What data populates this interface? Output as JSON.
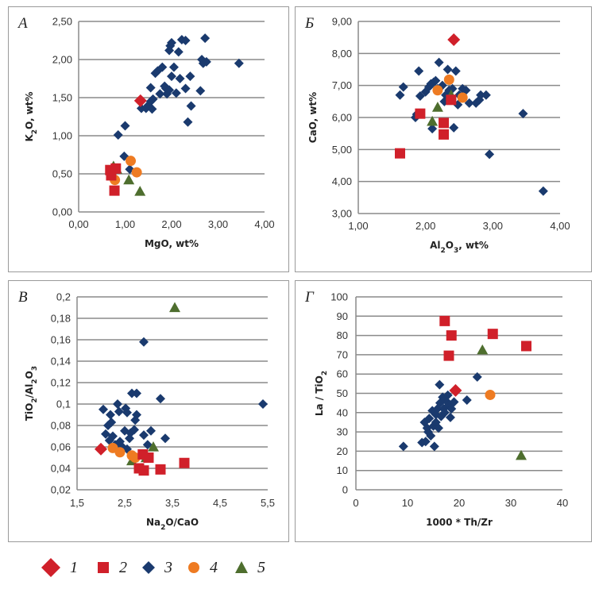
{
  "legend": [
    {
      "id": "1",
      "label": "1",
      "shape": "diamond-large",
      "color": "#d0202a"
    },
    {
      "id": "2",
      "label": "2",
      "shape": "square",
      "color": "#d0202a"
    },
    {
      "id": "3",
      "label": "3",
      "shape": "diamond",
      "color": "#1a3a6e"
    },
    {
      "id": "4",
      "label": "4",
      "shape": "circle",
      "color": "#ee7b22"
    },
    {
      "id": "5",
      "label": "5",
      "shape": "triangle",
      "color": "#4e6e2e"
    }
  ],
  "chart_data": [
    {
      "type": "scatter",
      "panel": "A",
      "panel_letter": "А",
      "xlabel": "MgO, wt%",
      "ylabel_main": "K",
      "ylabel_sub": "2",
      "ylabel_rest": "O, wt%",
      "xlim": [
        0,
        4
      ],
      "ylim": [
        0,
        2.5
      ],
      "xticks": [
        0,
        1,
        2,
        3,
        4
      ],
      "xtick_labels": [
        "0,00",
        "1,00",
        "2,00",
        "3,00",
        "4,00"
      ],
      "yticks": [
        0,
        0.5,
        1,
        1.5,
        2,
        2.5
      ],
      "ytick_labels": [
        "0,00",
        "0,50",
        "1,00",
        "1,50",
        "2,00",
        "2,50"
      ],
      "grid": true,
      "series": [
        {
          "name": "1",
          "points": [
            [
              1.33,
              1.46
            ]
          ]
        },
        {
          "name": "2",
          "points": [
            [
              0.68,
              0.55
            ],
            [
              0.7,
              0.48
            ],
            [
              0.8,
              0.57
            ],
            [
              0.77,
              0.28
            ]
          ]
        },
        {
          "name": "3",
          "points": [
            [
              0.85,
              1.01
            ],
            [
              1.0,
              1.13
            ],
            [
              0.98,
              0.73
            ],
            [
              1.1,
              0.56
            ],
            [
              1.35,
              1.36
            ],
            [
              1.45,
              1.36
            ],
            [
              1.5,
              1.4
            ],
            [
              1.55,
              1.45
            ],
            [
              1.58,
              1.35
            ],
            [
              1.55,
              1.63
            ],
            [
              1.6,
              1.48
            ],
            [
              1.65,
              1.82
            ],
            [
              1.7,
              1.85
            ],
            [
              1.75,
              1.55
            ],
            [
              1.8,
              1.9
            ],
            [
              1.85,
              1.65
            ],
            [
              1.88,
              1.62
            ],
            [
              1.9,
              1.55
            ],
            [
              1.95,
              1.6
            ],
            [
              1.95,
              2.12
            ],
            [
              1.97,
              2.18
            ],
            [
              2.0,
              2.22
            ],
            [
              2.0,
              1.78
            ],
            [
              2.05,
              1.9
            ],
            [
              2.1,
              1.56
            ],
            [
              2.15,
              2.1
            ],
            [
              2.18,
              1.75
            ],
            [
              2.22,
              2.26
            ],
            [
              2.3,
              2.25
            ],
            [
              2.3,
              1.62
            ],
            [
              2.35,
              1.18
            ],
            [
              2.4,
              1.78
            ],
            [
              2.42,
              1.39
            ],
            [
              2.62,
              1.59
            ],
            [
              2.65,
              2.0
            ],
            [
              2.68,
              1.95
            ],
            [
              2.72,
              2.28
            ],
            [
              2.75,
              1.97
            ],
            [
              3.45,
              1.95
            ]
          ]
        },
        {
          "name": "4",
          "points": [
            [
              0.78,
              0.42
            ],
            [
              1.12,
              0.67
            ],
            [
              1.25,
              0.52
            ]
          ]
        },
        {
          "name": "5",
          "points": [
            [
              0.75,
              0.6
            ],
            [
              0.82,
              0.56
            ],
            [
              1.08,
              0.42
            ],
            [
              1.32,
              0.27
            ]
          ]
        }
      ]
    },
    {
      "type": "scatter",
      "panel": "B",
      "panel_letter": "Б",
      "xlabel_main": "Al",
      "xlabel_sub1": "2",
      "xlabel_mid": "O",
      "xlabel_sub2": "3",
      "xlabel_rest": ", wt%",
      "ylabel": "CaO, wt%",
      "xlim": [
        1,
        4
      ],
      "ylim": [
        3,
        9
      ],
      "xticks": [
        1,
        2,
        3,
        4
      ],
      "xtick_labels": [
        "1,00",
        "2,00",
        "3,00",
        "4,00"
      ],
      "yticks": [
        3,
        4,
        5,
        6,
        7,
        8,
        9
      ],
      "ytick_labels": [
        "3,00",
        "4,00",
        "5,00",
        "6,00",
        "7,00",
        "8,00",
        "9,00"
      ],
      "grid": true,
      "series": [
        {
          "name": "1",
          "points": [
            [
              2.42,
              8.43
            ]
          ]
        },
        {
          "name": "2",
          "points": [
            [
              1.62,
              4.88
            ],
            [
              1.92,
              6.12
            ],
            [
              2.27,
              5.83
            ],
            [
              2.27,
              5.47
            ],
            [
              2.38,
              6.55
            ]
          ]
        },
        {
          "name": "3",
          "points": [
            [
              1.62,
              6.7
            ],
            [
              1.67,
              6.95
            ],
            [
              1.85,
              6.0
            ],
            [
              1.87,
              6.1
            ],
            [
              1.9,
              7.45
            ],
            [
              1.92,
              6.67
            ],
            [
              2.0,
              6.8
            ],
            [
              2.05,
              6.95
            ],
            [
              2.08,
              7.05
            ],
            [
              2.1,
              5.65
            ],
            [
              2.12,
              7.1
            ],
            [
              2.15,
              7.15
            ],
            [
              2.18,
              6.9
            ],
            [
              2.2,
              7.72
            ],
            [
              2.25,
              7.0
            ],
            [
              2.28,
              6.5
            ],
            [
              2.3,
              6.7
            ],
            [
              2.33,
              7.5
            ],
            [
              2.35,
              6.85
            ],
            [
              2.4,
              6.9
            ],
            [
              2.42,
              5.68
            ],
            [
              2.45,
              7.45
            ],
            [
              2.48,
              6.4
            ],
            [
              2.5,
              6.7
            ],
            [
              2.55,
              6.9
            ],
            [
              2.6,
              6.85
            ],
            [
              2.65,
              6.45
            ],
            [
              2.75,
              6.45
            ],
            [
              2.8,
              6.55
            ],
            [
              2.82,
              6.7
            ],
            [
              2.9,
              6.7
            ],
            [
              2.95,
              4.85
            ],
            [
              3.45,
              6.12
            ],
            [
              3.75,
              3.7
            ]
          ]
        },
        {
          "name": "4",
          "points": [
            [
              2.18,
              6.85
            ],
            [
              2.35,
              7.18
            ],
            [
              2.55,
              6.62
            ]
          ]
        },
        {
          "name": "5",
          "points": [
            [
              2.1,
              5.88
            ],
            [
              2.18,
              6.32
            ],
            [
              2.38,
              6.7
            ]
          ]
        }
      ]
    },
    {
      "type": "scatter",
      "panel": "C",
      "panel_letter": "В",
      "xlabel_main": "Na",
      "xlabel_sub": "2",
      "xlabel_rest": "O/CaO",
      "ylabel_main": "TiO",
      "ylabel_sub1": "2",
      "ylabel_mid": "/Al",
      "ylabel_sub2": "2",
      "ylabel_mid2": "O",
      "ylabel_sub3": "3",
      "xlim": [
        1.5,
        5.5
      ],
      "ylim": [
        0.02,
        0.2
      ],
      "xticks": [
        1.5,
        2.5,
        3.5,
        4.5,
        5.5
      ],
      "xtick_labels": [
        "1,5",
        "2,5",
        "3,5",
        "4,5",
        "5,5"
      ],
      "yticks": [
        0.02,
        0.04,
        0.06,
        0.08,
        0.1,
        0.12,
        0.14,
        0.16,
        0.18,
        0.2
      ],
      "ytick_labels": [
        "0,02",
        "0,04",
        "0,06",
        "0,08",
        "0,1",
        "0,12",
        "0,14",
        "0,16",
        "0,18",
        "0,2"
      ],
      "grid": true,
      "series": [
        {
          "name": "1",
          "points": [
            [
              2.0,
              0.058
            ]
          ]
        },
        {
          "name": "2",
          "points": [
            [
              2.8,
              0.04
            ],
            [
              2.88,
              0.053
            ],
            [
              2.9,
              0.038
            ],
            [
              3.0,
              0.05
            ],
            [
              3.25,
              0.039
            ],
            [
              3.75,
              0.045
            ]
          ]
        },
        {
          "name": "3",
          "points": [
            [
              2.05,
              0.095
            ],
            [
              2.1,
              0.072
            ],
            [
              2.15,
              0.08
            ],
            [
              2.18,
              0.066
            ],
            [
              2.2,
              0.09
            ],
            [
              2.22,
              0.083
            ],
            [
              2.25,
              0.07
            ],
            [
              2.3,
              0.062
            ],
            [
              2.35,
              0.1
            ],
            [
              2.38,
              0.093
            ],
            [
              2.4,
              0.065
            ],
            [
              2.45,
              0.06
            ],
            [
              2.5,
              0.075
            ],
            [
              2.52,
              0.096
            ],
            [
              2.55,
              0.092
            ],
            [
              2.55,
              0.058
            ],
            [
              2.6,
              0.068
            ],
            [
              2.62,
              0.073
            ],
            [
              2.65,
              0.11
            ],
            [
              2.7,
              0.076
            ],
            [
              2.72,
              0.085
            ],
            [
              2.75,
              0.11
            ],
            [
              2.75,
              0.09
            ],
            [
              2.9,
              0.071
            ],
            [
              2.9,
              0.158
            ],
            [
              2.98,
              0.062
            ],
            [
              3.05,
              0.075
            ],
            [
              3.25,
              0.105
            ],
            [
              3.35,
              0.068
            ],
            [
              5.4,
              0.1
            ]
          ]
        },
        {
          "name": "4",
          "points": [
            [
              2.25,
              0.059
            ],
            [
              2.4,
              0.055
            ],
            [
              2.65,
              0.052
            ],
            [
              2.72,
              0.05
            ]
          ]
        },
        {
          "name": "5",
          "points": [
            [
              2.65,
              0.047
            ],
            [
              2.95,
              0.05
            ],
            [
              3.1,
              0.06
            ],
            [
              3.55,
              0.19
            ]
          ]
        }
      ]
    },
    {
      "type": "scatter",
      "panel": "D",
      "panel_letter": "Г",
      "xlabel": "1000 * Th/Zr",
      "ylabel_main": "La / TiO",
      "ylabel_sub": "2",
      "xlim": [
        0,
        40
      ],
      "ylim": [
        0,
        100
      ],
      "xticks": [
        0,
        10,
        20,
        30,
        40
      ],
      "xtick_labels": [
        "0",
        "10",
        "20",
        "30",
        "40"
      ],
      "yticks": [
        0,
        10,
        20,
        30,
        40,
        50,
        60,
        70,
        80,
        90,
        100
      ],
      "ytick_labels": [
        "0",
        "10",
        "20",
        "30",
        "40",
        "50",
        "60",
        "70",
        "80",
        "90",
        "100"
      ],
      "grid": true,
      "series": [
        {
          "name": "1",
          "points": [
            [
              19.3,
              51.5
            ]
          ]
        },
        {
          "name": "2",
          "points": [
            [
              17.2,
              87.5
            ],
            [
              18.5,
              80
            ],
            [
              18.0,
              69.5
            ],
            [
              26.5,
              80.8
            ],
            [
              33.0,
              74.5
            ]
          ]
        },
        {
          "name": "3",
          "points": [
            [
              9.2,
              22.5
            ],
            [
              12.8,
              24.5
            ],
            [
              13.3,
              35
            ],
            [
              13.5,
              25
            ],
            [
              13.8,
              32
            ],
            [
              14.0,
              30
            ],
            [
              14.2,
              37
            ],
            [
              14.5,
              28
            ],
            [
              14.8,
              41
            ],
            [
              15.0,
              33
            ],
            [
              15.2,
              22.5
            ],
            [
              15.5,
              35
            ],
            [
              15.5,
              39
            ],
            [
              15.8,
              42
            ],
            [
              16.0,
              32
            ],
            [
              16.2,
              54.5
            ],
            [
              16.3,
              45
            ],
            [
              16.5,
              38
            ],
            [
              16.8,
              48
            ],
            [
              17.0,
              42
            ],
            [
              17.2,
              40
            ],
            [
              17.5,
              46
            ],
            [
              17.8,
              49
            ],
            [
              18.0,
              44
            ],
            [
              18.3,
              37.5
            ],
            [
              18.5,
              42
            ],
            [
              19.0,
              45.5
            ],
            [
              21.5,
              46.5
            ],
            [
              23.5,
              58.5
            ]
          ]
        },
        {
          "name": "4",
          "points": [
            [
              26.0,
              49.2
            ]
          ]
        },
        {
          "name": "5",
          "points": [
            [
              24.5,
              72.5
            ],
            [
              32.0,
              17.8
            ]
          ]
        }
      ]
    }
  ]
}
